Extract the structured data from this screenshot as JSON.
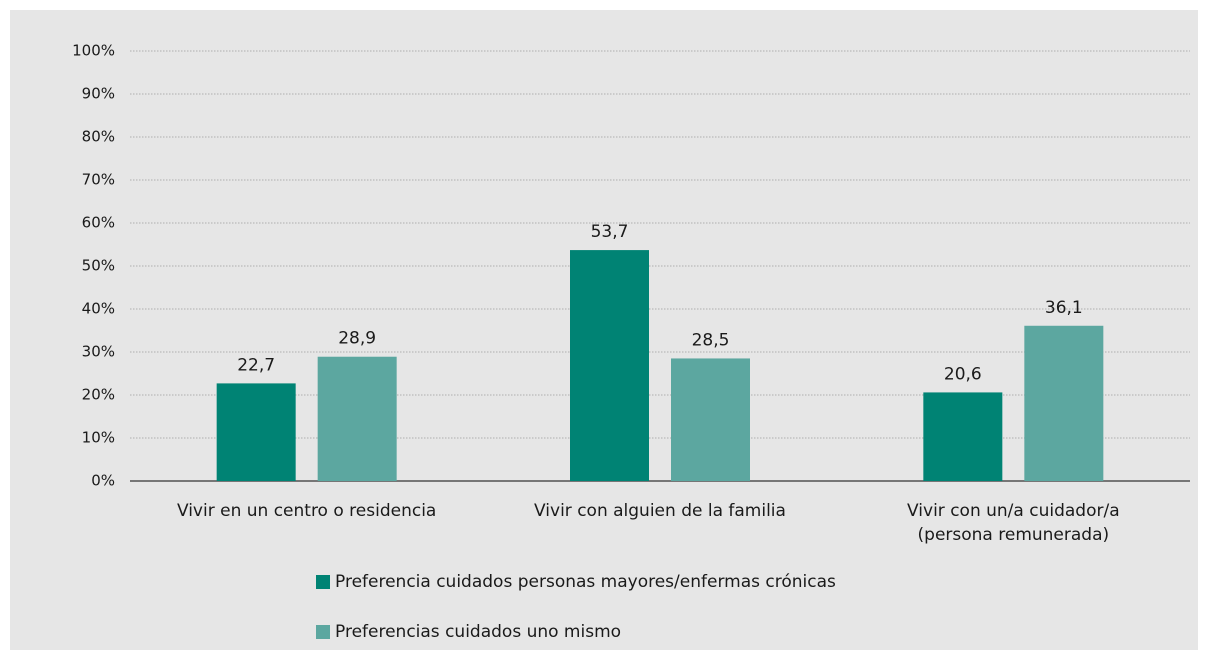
{
  "chart_data": {
    "type": "bar",
    "categories": [
      "Vivir en un centro o residencia",
      "Vivir con alguien de la familia",
      "Vivir con un/a cuidador/a\n(persona remunerada)"
    ],
    "series": [
      {
        "name": "Preferencia cuidados personas mayores/enfermas crónicas",
        "color": "#008374",
        "values": [
          22.7,
          53.7,
          20.6
        ],
        "value_labels": [
          "22,7",
          "53,7",
          "20,6"
        ]
      },
      {
        "name": "Preferencias cuidados uno mismo",
        "color": "#5ca7a0",
        "values": [
          28.9,
          28.5,
          36.1
        ],
        "value_labels": [
          "28,9",
          "28,5",
          "36,1"
        ]
      }
    ],
    "ylim": [
      0,
      100
    ],
    "yticks": [
      {
        "value": 0,
        "label": "0%"
      },
      {
        "value": 10,
        "label": "10%"
      },
      {
        "value": 20,
        "label": "20%"
      },
      {
        "value": 30,
        "label": "30%"
      },
      {
        "value": 40,
        "label": "40%"
      },
      {
        "value": 50,
        "label": "50%"
      },
      {
        "value": 60,
        "label": "60%"
      },
      {
        "value": 70,
        "label": "70%"
      },
      {
        "value": 80,
        "label": "80%"
      },
      {
        "value": 90,
        "label": "90%"
      },
      {
        "value": 100,
        "label": "100%"
      }
    ],
    "grid": true
  }
}
